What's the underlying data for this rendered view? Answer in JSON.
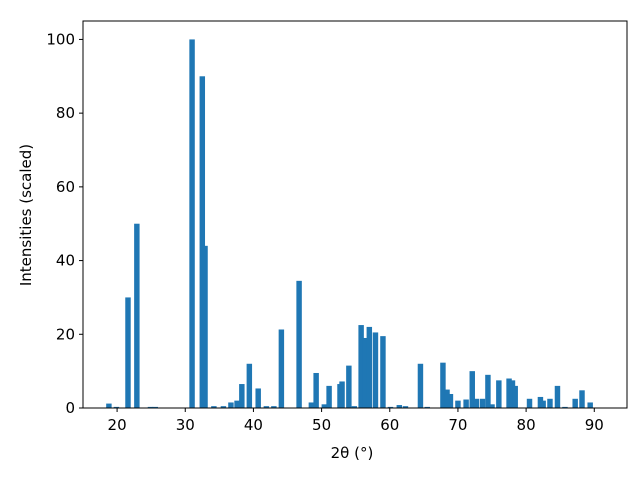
{
  "chart_data": {
    "type": "bar",
    "x_label": "2θ (°)",
    "y_label": "Intensities (scaled)",
    "color": "#1f77b4",
    "x": [
      18.8,
      19.9,
      21.6,
      22.9,
      24.9,
      25.6,
      31.0,
      32.5,
      32.9,
      34.2,
      35.6,
      36.7,
      37.6,
      38.3,
      39.4,
      40.7,
      41.9,
      43.0,
      44.1,
      46.7,
      48.5,
      49.2,
      50.4,
      51.1,
      52.7,
      53.0,
      54.0,
      54.8,
      55.8,
      56.4,
      57.0,
      57.9,
      59.0,
      60.1,
      61.4,
      62.3,
      64.5,
      65.5,
      67.8,
      68.4,
      68.9,
      70.0,
      71.2,
      72.1,
      72.7,
      73.6,
      74.4,
      75.0,
      76.0,
      77.5,
      78.0,
      78.4,
      80.5,
      82.1,
      82.5,
      83.5,
      84.6,
      85.7,
      87.2,
      88.2,
      89.4
    ],
    "values": [
      1.2,
      0.3,
      30,
      50,
      0.3,
      0.3,
      100,
      90,
      44,
      0.5,
      0.5,
      1.5,
      2,
      6.5,
      12,
      5.3,
      0.5,
      0.5,
      21.3,
      34.5,
      1.5,
      9.5,
      1,
      6,
      6.5,
      7.2,
      11.5,
      0.5,
      22.5,
      19,
      22,
      20.5,
      19.5,
      0.3,
      0.8,
      0.5,
      12,
      0.3,
      12.3,
      5,
      3.8,
      2,
      2.3,
      10,
      2.5,
      2.5,
      9,
      1,
      7.5,
      8,
      7.5,
      6,
      2.5,
      3,
      2,
      2.5,
      6,
      0.3,
      2.5,
      4.8,
      1.5
    ],
    "xlim": [
      15,
      94.8
    ],
    "ylim": [
      0,
      105
    ],
    "xticks": [
      20,
      30,
      40,
      50,
      60,
      70,
      80,
      90
    ],
    "yticks": [
      0,
      20,
      40,
      60,
      80,
      100
    ]
  }
}
